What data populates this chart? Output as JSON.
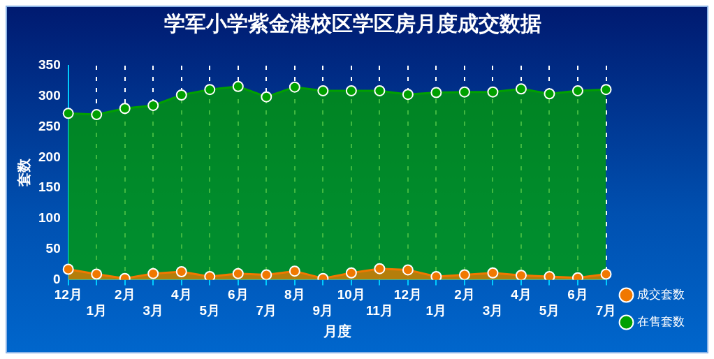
{
  "chart_data": {
    "type": "area",
    "title": "学军小学紫金港校区学区房月度成交数据",
    "xlabel": "月度",
    "ylabel": "套数",
    "categories": [
      "12月",
      "1月",
      "2月",
      "3月",
      "4月",
      "5月",
      "6月",
      "7月",
      "8月",
      "9月",
      "10月",
      "11月",
      "12月",
      "1月",
      "2月",
      "3月",
      "4月",
      "5月",
      "6月",
      "7月"
    ],
    "series": [
      {
        "name": "成交套数",
        "color": "#f07800",
        "values": [
          17,
          9,
          2,
          10,
          13,
          5,
          10,
          8,
          14,
          2,
          11,
          18,
          16,
          5,
          8,
          11,
          7,
          5,
          3,
          9
        ]
      },
      {
        "name": "在售套数",
        "color": "#00a000",
        "values": [
          272,
          270,
          280,
          285,
          302,
          311,
          316,
          299,
          315,
          309,
          309,
          309,
          303,
          306,
          307,
          307,
          312,
          304,
          309,
          311
        ]
      }
    ],
    "ylim": [
      0,
      350
    ],
    "yticks": [
      0,
      50,
      100,
      150,
      200,
      250,
      300,
      350
    ],
    "grid": "x",
    "legend": "right",
    "marker": "circle",
    "line_style": "solid"
  }
}
